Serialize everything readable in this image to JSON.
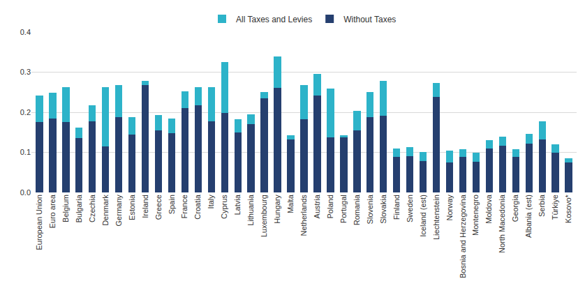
{
  "chart_data": {
    "type": "bar",
    "stacked": true,
    "categories": [
      "European Union",
      "Euro area",
      "Belgium",
      "Bulgaria",
      "Czechia",
      "Denmark",
      "Germany",
      "Estonia",
      "Ireland",
      "Greece",
      "Spain",
      "France",
      "Croatia",
      "Italy",
      "Cyprus",
      "Latvia",
      "Lithuania",
      "Luxembourg",
      "Hungary",
      "Malta",
      "Netherlands",
      "Austria",
      "Poland",
      "Portugal",
      "Romania",
      "Slovenia",
      "Slovakia",
      "Finland",
      "Sweden",
      "Iceland (est)",
      "Liechtenstein",
      "Norway",
      "Bosnia and Herzegovina",
      "Montenegro",
      "Moldova",
      "North Macedonia",
      "Georgia",
      "Albania (est)",
      "Serbia",
      "Türkiye",
      "Kosovo*"
    ],
    "series": [
      {
        "name": "Without Taxes",
        "color": "#253f6f",
        "values": [
          0.176,
          0.185,
          0.175,
          0.135,
          0.178,
          0.115,
          0.188,
          0.145,
          0.268,
          0.155,
          0.148,
          0.21,
          0.218,
          0.177,
          0.198,
          0.15,
          0.17,
          0.234,
          0.261,
          0.133,
          0.182,
          0.242,
          0.138,
          0.138,
          0.155,
          0.188,
          0.192,
          0.088,
          0.09,
          0.078,
          0.238,
          0.074,
          0.089,
          0.077,
          0.11,
          0.117,
          0.089,
          0.121,
          0.132,
          0.099,
          0.075
        ]
      },
      {
        "name": "All Taxes and Levies",
        "color": "#2db3c9",
        "values": [
          0.066,
          0.063,
          0.087,
          0.027,
          0.039,
          0.147,
          0.079,
          0.043,
          0.011,
          0.038,
          0.036,
          0.043,
          0.045,
          0.086,
          0.127,
          0.032,
          0.025,
          0.016,
          0.079,
          0.009,
          0.085,
          0.054,
          0.122,
          0.004,
          0.049,
          0.062,
          0.087,
          0.022,
          0.023,
          0.023,
          0.035,
          0.03,
          0.018,
          0.022,
          0.021,
          0.022,
          0.018,
          0.025,
          0.046,
          0.021,
          0.01
        ]
      }
    ],
    "ylim": [
      0,
      0.4
    ],
    "yticks": [
      {
        "value": 0,
        "label": "0.0"
      },
      0.1,
      0.2,
      0.3,
      0.4
    ],
    "grid": true,
    "legend": "top"
  }
}
